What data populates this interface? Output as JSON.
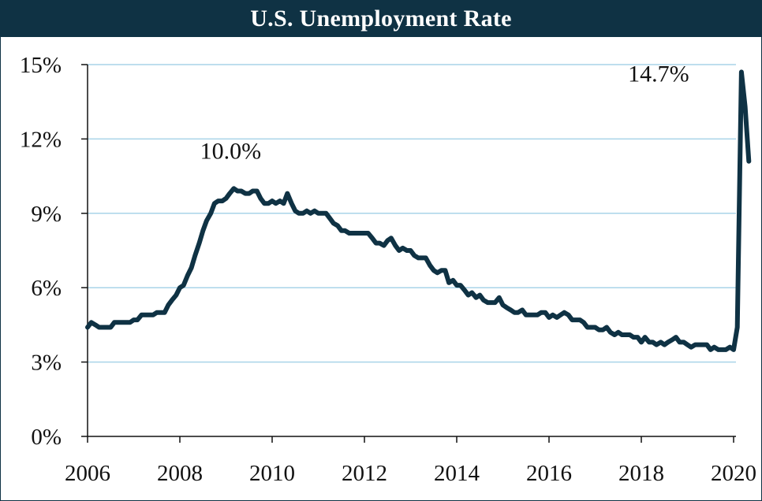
{
  "chart_data": {
    "type": "line",
    "title": "U.S. Unemployment Rate",
    "xlabel": "",
    "ylabel": "",
    "xlim": [
      2006,
      2020
    ],
    "ylim": [
      0,
      15
    ],
    "grid": true,
    "legend": "none",
    "colors": {
      "line": "#0f3244",
      "grid": "#a9d4e8",
      "title_bg": "#0f3244",
      "title_fg": "#ffffff"
    },
    "y_ticks": [
      {
        "value": 0,
        "label": "0%"
      },
      {
        "value": 3,
        "label": "3%"
      },
      {
        "value": 6,
        "label": "6%"
      },
      {
        "value": 9,
        "label": "9%"
      },
      {
        "value": 12,
        "label": "12%"
      },
      {
        "value": 15,
        "label": "15%"
      }
    ],
    "x_ticks": [
      {
        "value": 2006,
        "label": "2006"
      },
      {
        "value": 2008,
        "label": "2008"
      },
      {
        "value": 2010,
        "label": "2010"
      },
      {
        "value": 2012,
        "label": "2012"
      },
      {
        "value": 2014,
        "label": "2014"
      },
      {
        "value": 2016,
        "label": "2016"
      },
      {
        "value": 2018,
        "label": "2018"
      },
      {
        "value": 2020,
        "label": "2020"
      }
    ],
    "annotations": [
      {
        "text": "10.0%",
        "x": 2009.1,
        "y": 10.0
      },
      {
        "text": "14.7%",
        "x": 2019.4,
        "y": 14.7
      }
    ],
    "series": [
      {
        "values": [
          [
            2006.0,
            4.4
          ],
          [
            2006.08,
            4.6
          ],
          [
            2006.17,
            4.5
          ],
          [
            2006.25,
            4.4
          ],
          [
            2006.33,
            4.4
          ],
          [
            2006.42,
            4.4
          ],
          [
            2006.5,
            4.4
          ],
          [
            2006.58,
            4.6
          ],
          [
            2006.67,
            4.6
          ],
          [
            2006.75,
            4.6
          ],
          [
            2006.83,
            4.6
          ],
          [
            2006.92,
            4.6
          ],
          [
            2007.0,
            4.7
          ],
          [
            2007.08,
            4.7
          ],
          [
            2007.17,
            4.9
          ],
          [
            2007.25,
            4.9
          ],
          [
            2007.33,
            4.9
          ],
          [
            2007.42,
            4.9
          ],
          [
            2007.5,
            5.0
          ],
          [
            2007.58,
            5.0
          ],
          [
            2007.67,
            5.0
          ],
          [
            2007.75,
            5.3
          ],
          [
            2007.83,
            5.5
          ],
          [
            2007.92,
            5.7
          ],
          [
            2008.0,
            6.0
          ],
          [
            2008.08,
            6.1
          ],
          [
            2008.17,
            6.5
          ],
          [
            2008.25,
            6.8
          ],
          [
            2008.33,
            7.3
          ],
          [
            2008.42,
            7.8
          ],
          [
            2008.5,
            8.3
          ],
          [
            2008.58,
            8.7
          ],
          [
            2008.67,
            9.0
          ],
          [
            2008.75,
            9.4
          ],
          [
            2008.83,
            9.5
          ],
          [
            2008.92,
            9.5
          ],
          [
            2009.0,
            9.6
          ],
          [
            2009.08,
            9.8
          ],
          [
            2009.17,
            10.0
          ],
          [
            2009.25,
            9.9
          ],
          [
            2009.33,
            9.9
          ],
          [
            2009.42,
            9.8
          ],
          [
            2009.5,
            9.8
          ],
          [
            2009.58,
            9.9
          ],
          [
            2009.67,
            9.9
          ],
          [
            2009.75,
            9.6
          ],
          [
            2009.83,
            9.4
          ],
          [
            2009.92,
            9.4
          ],
          [
            2010.0,
            9.5
          ],
          [
            2010.08,
            9.4
          ],
          [
            2010.17,
            9.5
          ],
          [
            2010.25,
            9.4
          ],
          [
            2010.33,
            9.8
          ],
          [
            2010.42,
            9.4
          ],
          [
            2010.5,
            9.1
          ],
          [
            2010.58,
            9.0
          ],
          [
            2010.67,
            9.0
          ],
          [
            2010.75,
            9.1
          ],
          [
            2010.83,
            9.0
          ],
          [
            2010.92,
            9.1
          ],
          [
            2011.0,
            9.0
          ],
          [
            2011.08,
            9.0
          ],
          [
            2011.17,
            9.0
          ],
          [
            2011.25,
            8.8
          ],
          [
            2011.33,
            8.6
          ],
          [
            2011.42,
            8.5
          ],
          [
            2011.5,
            8.3
          ],
          [
            2011.58,
            8.3
          ],
          [
            2011.67,
            8.2
          ],
          [
            2011.75,
            8.2
          ],
          [
            2011.83,
            8.2
          ],
          [
            2011.92,
            8.2
          ],
          [
            2012.0,
            8.2
          ],
          [
            2012.08,
            8.2
          ],
          [
            2012.17,
            8.0
          ],
          [
            2012.25,
            7.8
          ],
          [
            2012.33,
            7.8
          ],
          [
            2012.42,
            7.7
          ],
          [
            2012.5,
            7.9
          ],
          [
            2012.58,
            8.0
          ],
          [
            2012.67,
            7.7
          ],
          [
            2012.75,
            7.5
          ],
          [
            2012.83,
            7.6
          ],
          [
            2012.92,
            7.5
          ],
          [
            2013.0,
            7.5
          ],
          [
            2013.08,
            7.3
          ],
          [
            2013.17,
            7.2
          ],
          [
            2013.25,
            7.2
          ],
          [
            2013.33,
            7.2
          ],
          [
            2013.42,
            6.9
          ],
          [
            2013.5,
            6.7
          ],
          [
            2013.58,
            6.6
          ],
          [
            2013.67,
            6.7
          ],
          [
            2013.75,
            6.7
          ],
          [
            2013.83,
            6.2
          ],
          [
            2013.92,
            6.3
          ],
          [
            2014.0,
            6.1
          ],
          [
            2014.08,
            6.1
          ],
          [
            2014.17,
            5.9
          ],
          [
            2014.25,
            5.7
          ],
          [
            2014.33,
            5.8
          ],
          [
            2014.42,
            5.6
          ],
          [
            2014.5,
            5.7
          ],
          [
            2014.58,
            5.5
          ],
          [
            2014.67,
            5.4
          ],
          [
            2014.75,
            5.4
          ],
          [
            2014.83,
            5.4
          ],
          [
            2014.92,
            5.6
          ],
          [
            2015.0,
            5.3
          ],
          [
            2015.08,
            5.2
          ],
          [
            2015.17,
            5.1
          ],
          [
            2015.25,
            5.0
          ],
          [
            2015.33,
            5.0
          ],
          [
            2015.42,
            5.1
          ],
          [
            2015.5,
            4.9
          ],
          [
            2015.58,
            4.9
          ],
          [
            2015.67,
            4.9
          ],
          [
            2015.75,
            4.9
          ],
          [
            2015.83,
            5.0
          ],
          [
            2015.92,
            5.0
          ],
          [
            2016.0,
            4.8
          ],
          [
            2016.08,
            4.9
          ],
          [
            2016.17,
            4.8
          ],
          [
            2016.25,
            4.9
          ],
          [
            2016.33,
            5.0
          ],
          [
            2016.42,
            4.9
          ],
          [
            2016.5,
            4.7
          ],
          [
            2016.58,
            4.7
          ],
          [
            2016.67,
            4.7
          ],
          [
            2016.75,
            4.6
          ],
          [
            2016.83,
            4.4
          ],
          [
            2016.92,
            4.4
          ],
          [
            2017.0,
            4.4
          ],
          [
            2017.08,
            4.3
          ],
          [
            2017.17,
            4.3
          ],
          [
            2017.25,
            4.4
          ],
          [
            2017.33,
            4.2
          ],
          [
            2017.42,
            4.1
          ],
          [
            2017.5,
            4.2
          ],
          [
            2017.58,
            4.1
          ],
          [
            2017.67,
            4.1
          ],
          [
            2017.75,
            4.1
          ],
          [
            2017.83,
            4.0
          ],
          [
            2017.92,
            4.0
          ],
          [
            2018.0,
            3.8
          ],
          [
            2018.08,
            4.0
          ],
          [
            2018.17,
            3.8
          ],
          [
            2018.25,
            3.8
          ],
          [
            2018.33,
            3.7
          ],
          [
            2018.42,
            3.8
          ],
          [
            2018.5,
            3.7
          ],
          [
            2018.58,
            3.8
          ],
          [
            2018.67,
            3.9
          ],
          [
            2018.75,
            4.0
          ],
          [
            2018.83,
            3.8
          ],
          [
            2018.92,
            3.8
          ],
          [
            2019.0,
            3.7
          ],
          [
            2019.08,
            3.6
          ],
          [
            2019.17,
            3.7
          ],
          [
            2019.25,
            3.7
          ],
          [
            2019.33,
            3.7
          ],
          [
            2019.42,
            3.7
          ],
          [
            2019.5,
            3.5
          ],
          [
            2019.58,
            3.6
          ],
          [
            2019.67,
            3.5
          ],
          [
            2019.75,
            3.5
          ],
          [
            2019.83,
            3.5
          ],
          [
            2019.92,
            3.6
          ],
          [
            2020.0,
            3.5
          ],
          [
            2020.08,
            4.4
          ],
          [
            2020.17,
            14.7
          ],
          [
            2020.25,
            13.3
          ],
          [
            2020.33,
            11.1
          ]
        ]
      }
    ]
  }
}
